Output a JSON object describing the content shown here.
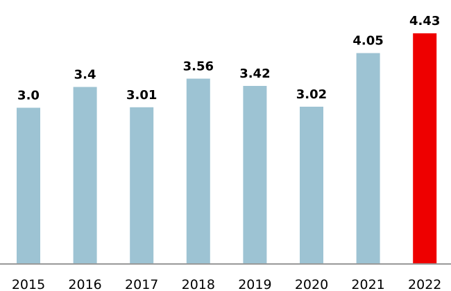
{
  "chart_data": {
    "type": "bar",
    "title": "",
    "xlabel": "",
    "ylabel": "",
    "categories": [
      "2015",
      "2016",
      "2017",
      "2018",
      "2019",
      "2020",
      "2021",
      "2022"
    ],
    "values": [
      3.0,
      3.4,
      3.01,
      3.56,
      3.42,
      3.02,
      4.05,
      4.43
    ],
    "value_labels": [
      "3.0",
      "3.4",
      "3.01",
      "3.56",
      "3.42",
      "3.02",
      "4.05",
      "4.43"
    ],
    "ylim": [
      0,
      4.5
    ],
    "grid": false,
    "legend": "none",
    "colors": {
      "bar": "#9dc3d3",
      "highlight": "#ee0000",
      "axis": "#999999"
    },
    "highlight_category": "2022"
  }
}
